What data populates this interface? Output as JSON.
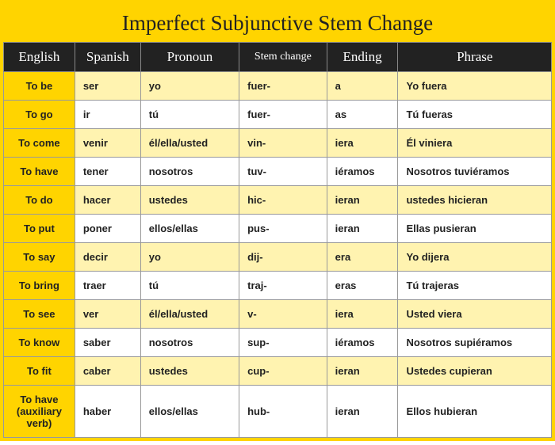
{
  "title": "Imperfect Subjunctive Stem Change",
  "colors": {
    "header_yellow": "#ffd400",
    "header_black": "#222222",
    "row_light_yellow": "#fff3b0",
    "row_white": "#ffffff",
    "border": "#999999",
    "text": "#222222"
  },
  "typography": {
    "title_font": "Georgia serif",
    "title_size_pt": 20,
    "header_font": "Georgia serif",
    "header_size_pt": 13,
    "body_font": "Arial sans-serif",
    "body_size_pt": 10,
    "body_weight": "bold"
  },
  "columns": [
    {
      "key": "english",
      "label": "English",
      "width_pct": 13
    },
    {
      "key": "spanish",
      "label": "Spanish",
      "width_pct": 12
    },
    {
      "key": "pronoun",
      "label": "Pronoun",
      "width_pct": 18
    },
    {
      "key": "stem",
      "label": "Stem change",
      "width_pct": 16
    },
    {
      "key": "ending",
      "label": "Ending",
      "width_pct": 13
    },
    {
      "key": "phrase",
      "label": "Phrase",
      "width_pct": 28
    }
  ],
  "rows": [
    {
      "english": "To be",
      "spanish": "ser",
      "pronoun": "yo",
      "stem": "fuer-",
      "ending": "a",
      "phrase": "Yo fuera"
    },
    {
      "english": "To go",
      "spanish": "ir",
      "pronoun": "tú",
      "stem": "fuer-",
      "ending": "as",
      "phrase": "Tú fueras"
    },
    {
      "english": "To come",
      "spanish": "venir",
      "pronoun": "él/ella/usted",
      "stem": "vin-",
      "ending": "iera",
      "phrase": "Él viniera"
    },
    {
      "english": "To have",
      "spanish": "tener",
      "pronoun": "nosotros",
      "stem": "tuv-",
      "ending": "iéramos",
      "phrase": "Nosotros tuviéramos"
    },
    {
      "english": "To do",
      "spanish": "hacer",
      "pronoun": "ustedes",
      "stem": "hic-",
      "ending": "ieran",
      "phrase": "ustedes hicieran"
    },
    {
      "english": "To put",
      "spanish": "poner",
      "pronoun": "ellos/ellas",
      "stem": "pus-",
      "ending": "ieran",
      "phrase": "Ellas pusieran"
    },
    {
      "english": "To say",
      "spanish": "decir",
      "pronoun": "yo",
      "stem": "dij-",
      "ending": "era",
      "phrase": "Yo dijera"
    },
    {
      "english": "To bring",
      "spanish": "traer",
      "pronoun": "tú",
      "stem": "traj-",
      "ending": "eras",
      "phrase": "Tú trajeras"
    },
    {
      "english": "To see",
      "spanish": "ver",
      "pronoun": "él/ella/usted",
      "stem": "v-",
      "ending": "iera",
      "phrase": "Usted viera"
    },
    {
      "english": "To know",
      "spanish": "saber",
      "pronoun": "nosotros",
      "stem": "sup-",
      "ending": "iéramos",
      "phrase": "Nosotros supiéramos"
    },
    {
      "english": "To fit",
      "spanish": "caber",
      "pronoun": "ustedes",
      "stem": "cup-",
      "ending": "ieran",
      "phrase": "Ustedes cupieran"
    },
    {
      "english": "To have (auxiliary verb)",
      "spanish": "haber",
      "pronoun": "ellos/ellas",
      "stem": "hub-",
      "ending": "ieran",
      "phrase": "Ellos hubieran"
    }
  ]
}
